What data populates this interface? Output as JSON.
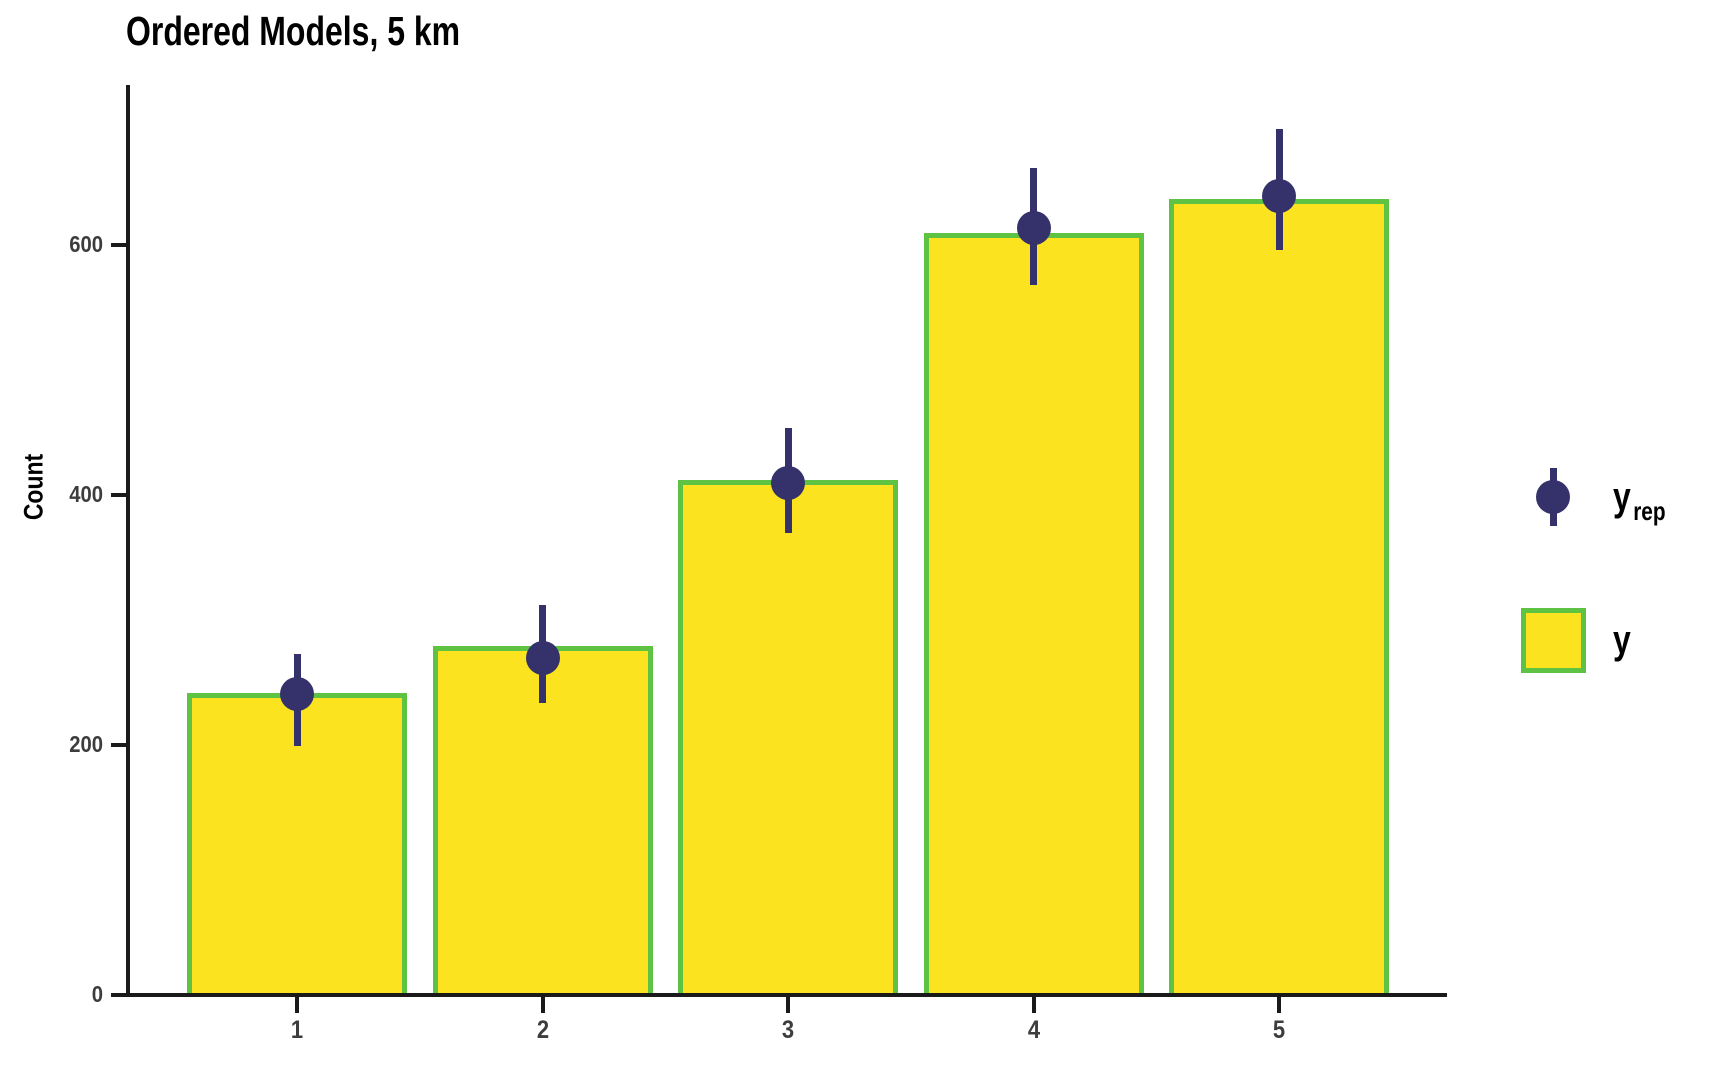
{
  "title": "Ordered Models, 5 km",
  "ylabel": "Count",
  "legend": {
    "position": "right",
    "items": [
      {
        "label_main": "y",
        "label_sub": "rep",
        "swatch": "point-interval-icon"
      },
      {
        "label_main": "y",
        "label_sub": "",
        "swatch": "bar-swatch-icon"
      }
    ]
  },
  "colors": {
    "bar_fill": "#FBE41F",
    "bar_border": "#5EC342",
    "point": "#35316B",
    "axis": "#1A1A1A",
    "tick_label": "#3D3D3D",
    "title": "#000000"
  },
  "chart_data": {
    "type": "bar",
    "title": "Ordered Models, 5 km",
    "xlabel": "",
    "ylabel": "Count",
    "categories": [
      "1",
      "2",
      "3",
      "4",
      "5"
    ],
    "series": [
      {
        "name": "y",
        "type": "bar",
        "values": [
          242,
          279,
          412,
          610,
          637
        ]
      },
      {
        "name": "y_rep",
        "type": "point-interval",
        "values": [
          241,
          270,
          410,
          614,
          639
        ],
        "lower": [
          199,
          234,
          370,
          568,
          596
        ],
        "upper": [
          273,
          312,
          454,
          662,
          693
        ]
      }
    ],
    "yticks": [
      0,
      200,
      400,
      600
    ],
    "ylim": [
      0,
      728
    ],
    "grid": false,
    "legend_position": "right"
  }
}
